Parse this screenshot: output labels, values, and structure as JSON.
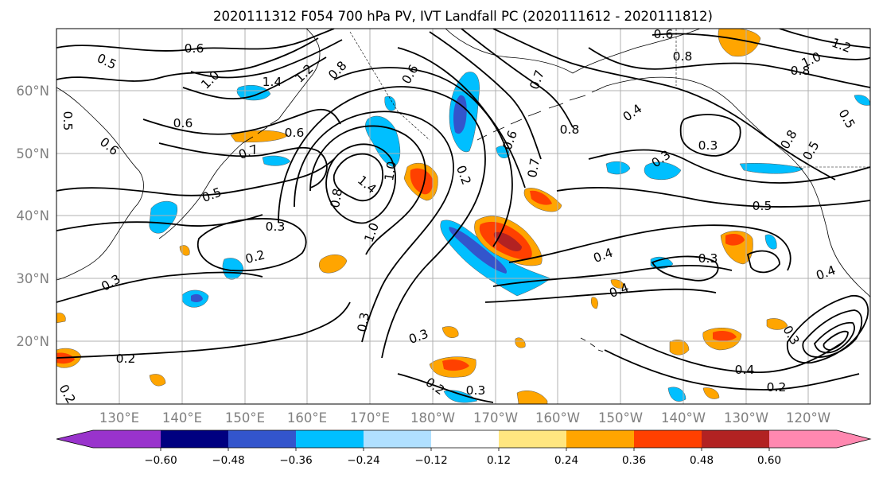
{
  "title": "2020111312 F054 700 hPa PV, IVT Landfall PC (2020111612 - 2020111812)",
  "lon_labels": [
    "130°E",
    "140°E",
    "150°E",
    "160°E",
    "170°E",
    "180°W",
    "170°W",
    "160°W",
    "150°W",
    "140°W",
    "130°W",
    "120°W"
  ],
  "lat_labels": [
    "20°N",
    "30°N",
    "40°N",
    "50°N",
    "60°N"
  ],
  "colorbar": {
    "tick_labels": [
      "−0.60",
      "−0.48",
      "−0.36",
      "−0.24",
      "−0.12",
      "0.12",
      "0.24",
      "0.36",
      "0.48",
      "0.60"
    ],
    "colors": [
      "#9933cc",
      "#000080",
      "#3355cc",
      "#00bfff",
      "#b0e0ff",
      "#ffffff",
      "#ffe680",
      "#ffa500",
      "#ff4000",
      "#b22222",
      "#ff88b0"
    ]
  },
  "contour_labels": [
    "0.5",
    "0.6",
    "0.6",
    "1.0",
    "1.4",
    "1.2",
    "0.8",
    "0.5",
    "0.6",
    "0.6",
    "0.7",
    "0.5",
    "0.6",
    "1.0",
    "1.4",
    "0.8",
    "1.0",
    "0.3",
    "0.2",
    "0.3",
    "0.2",
    "0.3",
    "0.2",
    "0.3",
    "0.2",
    "0.3",
    "0.2",
    "0.7",
    "0.6",
    "0.7",
    "0.8",
    "0.6",
    "0.8",
    "1.0",
    "1.2",
    "0.8",
    "0.4",
    "0.3",
    "0.3",
    "0.5",
    "0.5",
    "0.8",
    "0.5",
    "0.4",
    "0.3",
    "0.4",
    "0.4",
    "0.4",
    "0.2",
    "0.3"
  ]
}
